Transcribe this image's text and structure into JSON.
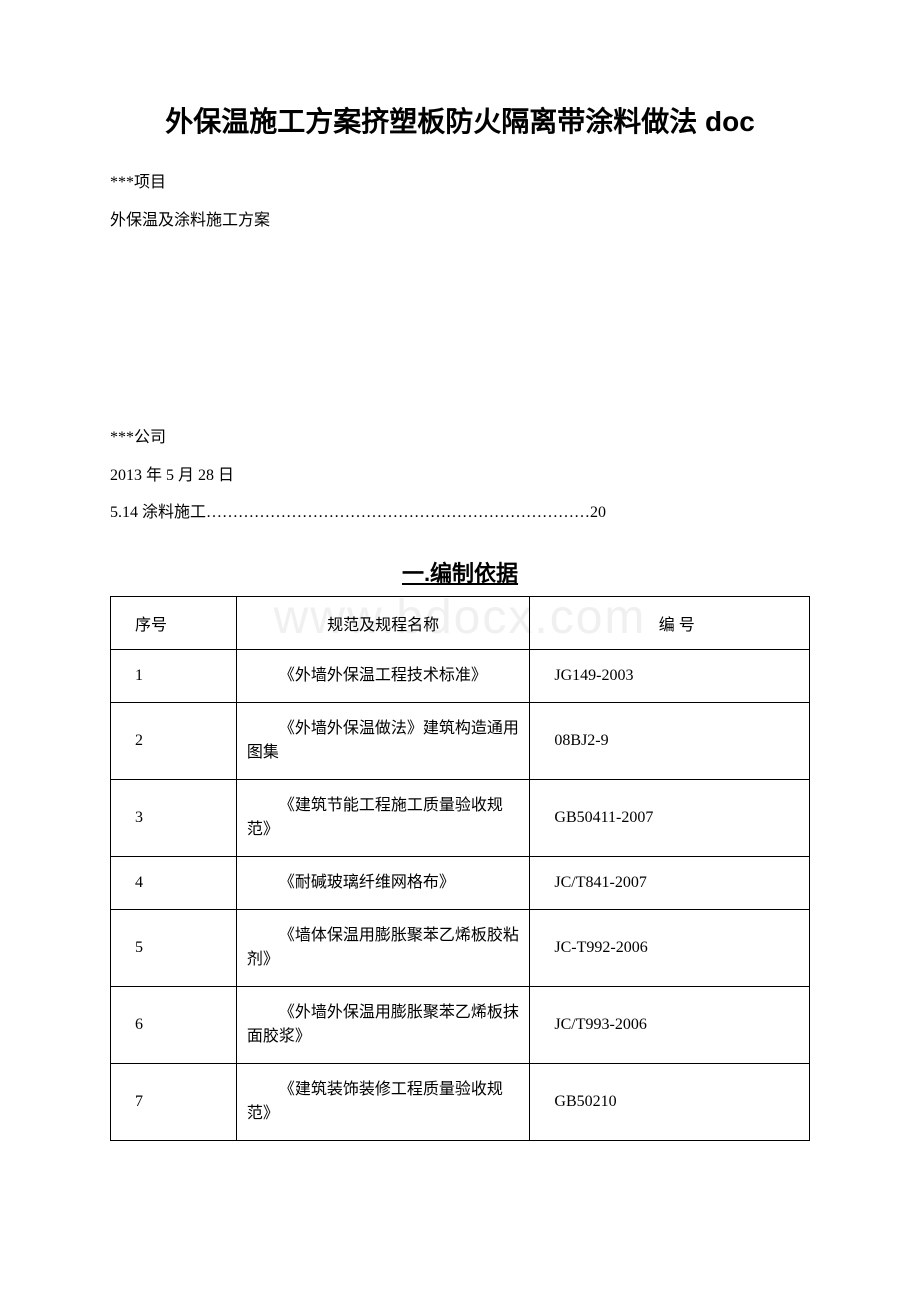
{
  "watermark_text": "www.bdocx.com",
  "document": {
    "title": "外保温施工方案挤塑板防火隔离带涂料做法 doc",
    "project_label": "***项目",
    "subtitle": "外保温及涂料施工方案",
    "company": "***公司",
    "date": "2013 年 5 月 28 日",
    "toc_item": "5.14 涂料施工………………………………………………………………20"
  },
  "section": {
    "title": "一.编制依据"
  },
  "table": {
    "headers": {
      "seq": "序号",
      "name": "规范及规程名称",
      "code": "编 号"
    },
    "rows": [
      {
        "seq": "1",
        "name": "《外墙外保温工程技术标准》",
        "code": "JG149-2003"
      },
      {
        "seq": "2",
        "name": "《外墙外保温做法》建筑构造通用图集",
        "code": "08BJ2-9"
      },
      {
        "seq": "3",
        "name": "《建筑节能工程施工质量验收规范》",
        "code": "GB50411-2007"
      },
      {
        "seq": "4",
        "name": "《耐碱玻璃纤维网格布》",
        "code": "JC/T841-2007"
      },
      {
        "seq": "5",
        "name": "《墙体保温用膨胀聚苯乙烯板胶粘剂》",
        "code": "JC-T992-2006"
      },
      {
        "seq": "6",
        "name": "《外墙外保温用膨胀聚苯乙烯板抹面胶浆》",
        "code": "JC/T993-2006"
      },
      {
        "seq": "7",
        "name": "《建筑装饰装修工程质量验收规范》",
        "code": "GB50210"
      }
    ]
  }
}
